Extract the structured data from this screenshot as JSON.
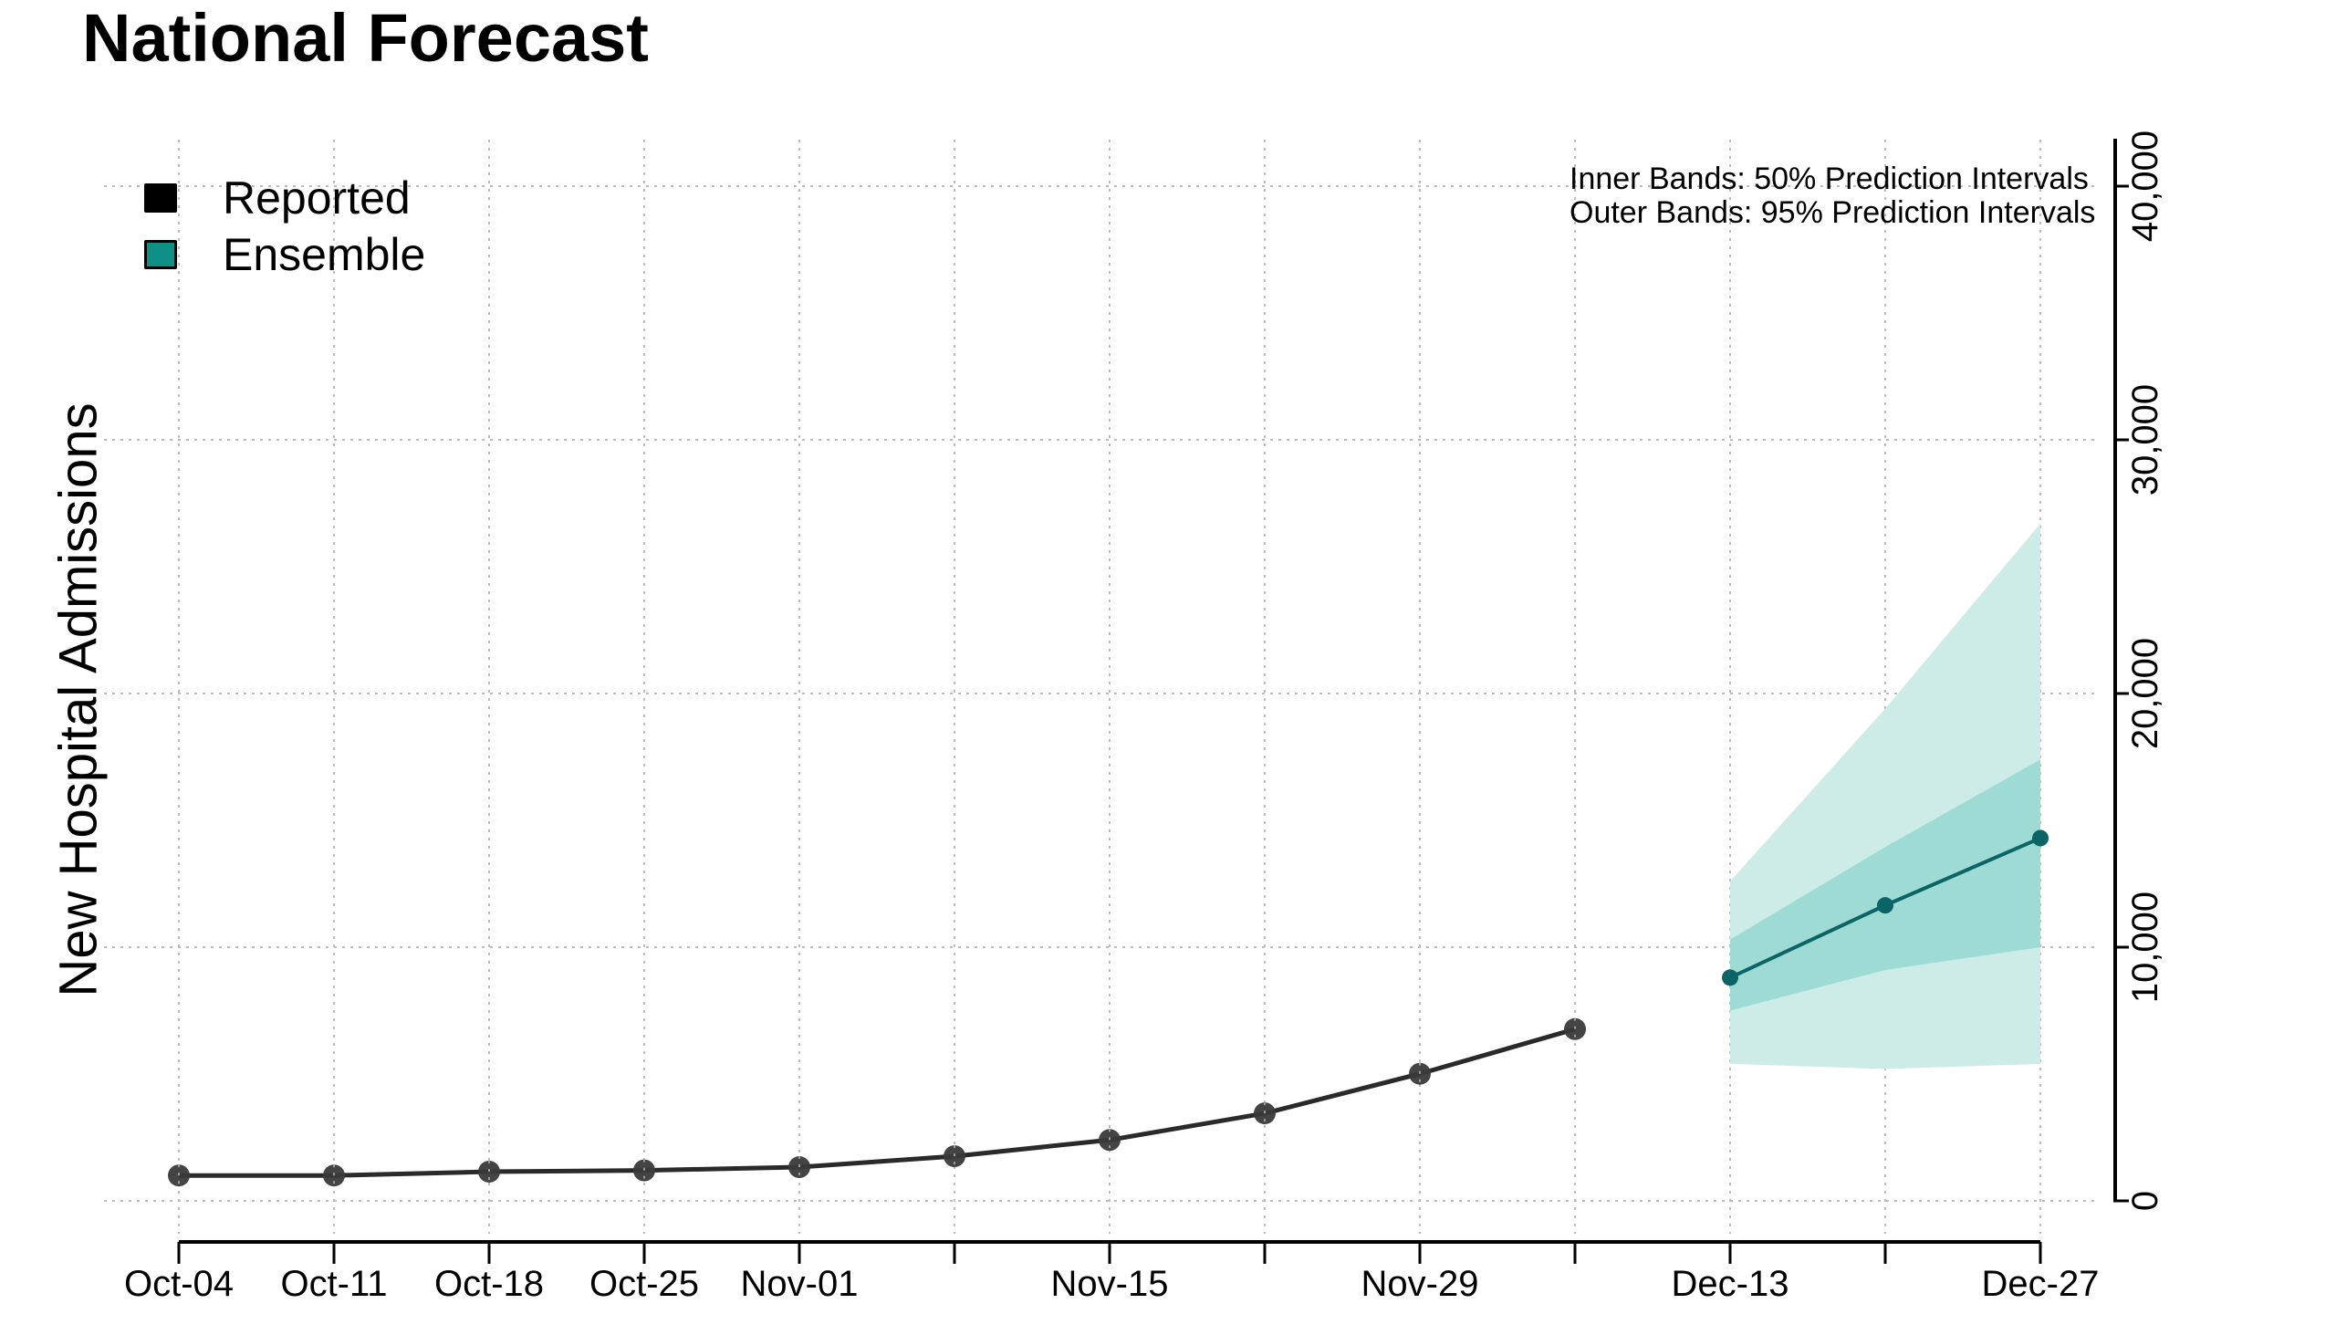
{
  "title": "National Forecast",
  "legend": {
    "items": [
      {
        "label": "Reported",
        "color": "#000000"
      },
      {
        "label": "Ensemble",
        "color": "#0f8f86"
      }
    ]
  },
  "annotation": {
    "line1": "Inner Bands: 50% Prediction Intervals",
    "line2": "Outer Bands: 95% Prediction Intervals"
  },
  "colors": {
    "reported_line": "#2a2a2a",
    "reported_point": "#3a3a3a",
    "ensemble_line": "#0b6466",
    "band_inner": "#9ddbd4",
    "band_outer": "#cdece8",
    "grid": "#bdbdbd",
    "axis": "#000000"
  },
  "chart_data": {
    "type": "line",
    "title": "National Forecast",
    "xlabel": "",
    "ylabel": "New Hospital Admissions",
    "y_axis_position": "right",
    "ylim": [
      0,
      42000
    ],
    "yticks": [
      0,
      10000,
      20000,
      30000,
      40000
    ],
    "ytick_labels": [
      "0",
      "10,000",
      "20,000",
      "30,000",
      "40,000"
    ],
    "x": [
      "Oct-04",
      "Oct-11",
      "Oct-18",
      "Oct-25",
      "Nov-01",
      "Nov-08",
      "Nov-15",
      "Nov-22",
      "Nov-29",
      "Dec-06",
      "Dec-13",
      "Dec-20",
      "Dec-27"
    ],
    "xtick_labels": [
      "Oct-04",
      "Oct-11",
      "Oct-18",
      "Oct-25",
      "Nov-01",
      "",
      "Nov-15",
      "",
      "Nov-29",
      "",
      "Dec-13",
      "",
      "Dec-27"
    ],
    "grid": true,
    "legend_position": "upper left",
    "annotations": [
      "Inner Bands: 50% Prediction Intervals",
      "Outer Bands: 95% Prediction Intervals"
    ],
    "series": [
      {
        "name": "Reported",
        "x": [
          "Oct-04",
          "Oct-11",
          "Oct-18",
          "Oct-25",
          "Nov-01",
          "Nov-08",
          "Nov-15",
          "Nov-22",
          "Nov-29",
          "Dec-06"
        ],
        "values": [
          1000,
          1000,
          1150,
          1200,
          1330,
          1760,
          2400,
          3450,
          5010,
          6770
        ]
      },
      {
        "name": "Ensemble",
        "x": [
          "Dec-13",
          "Dec-20",
          "Dec-27"
        ],
        "values": [
          8800,
          11650,
          14300
        ],
        "pi50_lower": [
          7500,
          9100,
          10000
        ],
        "pi50_upper": [
          10300,
          13950,
          17400
        ],
        "pi95_lower": [
          5400,
          5200,
          5400
        ],
        "pi95_upper": [
          12600,
          19400,
          26700
        ]
      }
    ]
  }
}
